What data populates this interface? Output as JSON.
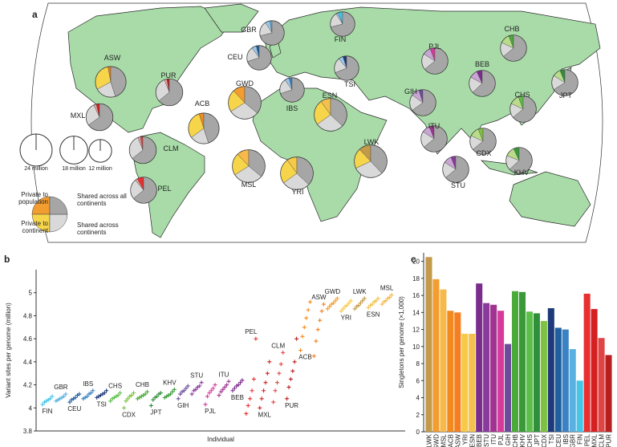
{
  "chart_data": [
    {
      "type": "pie-map",
      "panel": "a",
      "shared_colors": [
        "#d9d9d9",
        "#a6a6a6"
      ],
      "pies": [
        {
          "name": "ASW",
          "color": "#f57f20",
          "continent_color": "#f7d54a",
          "total": 22,
          "values": [
            3,
            30,
            22,
            45
          ]
        },
        {
          "name": "PUR",
          "color": "#b82020",
          "continent_color": "#f0a0a0",
          "total": 17,
          "values": [
            3,
            3,
            30,
            64
          ]
        },
        {
          "name": "MXL",
          "color": "#d42020",
          "continent_color": "#f0a0a0",
          "total": 17,
          "values": [
            4,
            3,
            28,
            65
          ]
        },
        {
          "name": "ACB",
          "color": "#f38a1f",
          "continent_color": "#f7d54a",
          "total": 22,
          "values": [
            5,
            30,
            20,
            45
          ]
        },
        {
          "name": "CLM",
          "color": "#e04545",
          "continent_color": "#f0a0a0",
          "total": 17,
          "values": [
            3,
            3,
            30,
            64
          ]
        },
        {
          "name": "PEL",
          "color": "#e83030",
          "continent_color": "#f0a0a0",
          "total": 16,
          "values": [
            8,
            3,
            25,
            64
          ]
        },
        {
          "name": "GBR",
          "color": "#5ab0e0",
          "continent_color": "#9ec6e8",
          "total": 14,
          "values": [
            3,
            6,
            20,
            71
          ]
        },
        {
          "name": "CEU",
          "color": "#1f5fa0",
          "continent_color": "#9ec6e8",
          "total": 14,
          "values": [
            4,
            6,
            20,
            70
          ]
        },
        {
          "name": "FIN",
          "color": "#45c5e8",
          "continent_color": "#9ec6e8",
          "total": 14,
          "values": [
            6,
            3,
            20,
            71
          ]
        },
        {
          "name": "IBS",
          "color": "#3a82c4",
          "continent_color": "#9ec6e8",
          "total": 14,
          "values": [
            4,
            6,
            20,
            70
          ]
        },
        {
          "name": "TSI",
          "color": "#1f3a7a",
          "continent_color": "#9ec6e8",
          "total": 14,
          "values": [
            5,
            6,
            20,
            69
          ]
        },
        {
          "name": "GWD",
          "color": "#f39c2f",
          "continent_color": "#f7d54a",
          "total": 25,
          "values": [
            12,
            22,
            30,
            36
          ]
        },
        {
          "name": "ESN",
          "color": "#f2c14e",
          "continent_color": "#f7d54a",
          "total": 25,
          "values": [
            10,
            25,
            28,
            37
          ]
        },
        {
          "name": "MSL",
          "color": "#f6b94a",
          "continent_color": "#f7d54a",
          "total": 25,
          "values": [
            12,
            22,
            30,
            36
          ]
        },
        {
          "name": "YRI",
          "color": "#f7c948",
          "continent_color": "#f7d54a",
          "total": 25,
          "values": [
            10,
            25,
            28,
            37
          ]
        },
        {
          "name": "LWK",
          "color": "#c29a4a",
          "continent_color": "#f7d54a",
          "total": 25,
          "values": [
            12,
            20,
            30,
            38
          ]
        },
        {
          "name": "PJL",
          "color": "#d63a9a",
          "continent_color": "#c9a4d4",
          "total": 16,
          "values": [
            6,
            10,
            20,
            64
          ]
        },
        {
          "name": "CHB",
          "color": "#4aab3a",
          "continent_color": "#b8dc8a",
          "total": 16,
          "values": [
            6,
            12,
            18,
            64
          ]
        },
        {
          "name": "BEB",
          "color": "#7b2d8e",
          "continent_color": "#c9a4d4",
          "total": 16,
          "values": [
            7,
            10,
            20,
            63
          ]
        },
        {
          "name": "GIH",
          "color": "#6b4c9a",
          "continent_color": "#c9a4d4",
          "total": 16,
          "values": [
            5,
            10,
            20,
            65
          ]
        },
        {
          "name": "ITU",
          "color": "#a0338f",
          "continent_color": "#c9a4d4",
          "total": 16,
          "values": [
            6,
            10,
            20,
            64
          ]
        },
        {
          "name": "CDX",
          "color": "#7fc241",
          "continent_color": "#b8dc8a",
          "total": 16,
          "values": [
            6,
            12,
            18,
            64
          ]
        },
        {
          "name": "STU",
          "color": "#8a3a9a",
          "continent_color": "#c9a4d4",
          "total": 16,
          "values": [
            6,
            10,
            20,
            64
          ]
        },
        {
          "name": "KHV",
          "color": "#3a9a3a",
          "continent_color": "#b8dc8a",
          "total": 16,
          "values": [
            7,
            12,
            18,
            63
          ]
        },
        {
          "name": "CHS",
          "color": "#5cbf4a",
          "continent_color": "#b8dc8a",
          "total": 16,
          "values": [
            6,
            12,
            18,
            64
          ]
        },
        {
          "name": "JPT",
          "color": "#2f8f3a",
          "continent_color": "#b8dc8a",
          "total": 16,
          "values": [
            6,
            10,
            18,
            66
          ]
        }
      ],
      "size_legend": [
        {
          "value": 24,
          "label": "24 million"
        },
        {
          "value": 18,
          "label": "18 million"
        },
        {
          "value": 12,
          "label": "12 million"
        }
      ],
      "legend_labels": [
        "Private to population",
        "Private to continent",
        "Shared across continents",
        "Shared across all continents"
      ],
      "legend_colors": [
        "#f39c2f",
        "#f7d54a",
        "#d9d9d9",
        "#a6a6a6"
      ]
    },
    {
      "type": "scatter",
      "panel": "b",
      "xlabel": "Individual",
      "ylabel": "Variant sites per genome (million)",
      "ylim": [
        3.8,
        5.2
      ],
      "yticks": [
        3.8,
        4,
        4.2,
        4.4,
        4.6,
        4.8,
        5
      ],
      "series": [
        {
          "name": "FIN",
          "color": "#45c5e8",
          "values": [
            4.03,
            4.05,
            4.06,
            4.07,
            4.08,
            4.1
          ]
        },
        {
          "name": "GBR",
          "color": "#5ab0e0",
          "values": [
            4.06,
            4.07,
            4.08,
            4.09,
            4.1,
            4.12
          ]
        },
        {
          "name": "CEU",
          "color": "#1f5fa0",
          "values": [
            4.05,
            4.07,
            4.08,
            4.09,
            4.11,
            4.12
          ]
        },
        {
          "name": "IBS",
          "color": "#3a82c4",
          "values": [
            4.08,
            4.09,
            4.1,
            4.12,
            4.13,
            4.15
          ]
        },
        {
          "name": "TSI",
          "color": "#1f3a7a",
          "values": [
            4.09,
            4.1,
            4.11,
            4.12,
            4.13,
            4.15
          ]
        },
        {
          "name": "CHS",
          "color": "#5cbf4a",
          "values": [
            4.06,
            4.08,
            4.09,
            4.1,
            4.11,
            4.13
          ]
        },
        {
          "name": "CDX",
          "color": "#7fc241",
          "values": [
            4.0,
            4.06,
            4.08,
            4.1,
            4.11,
            4.13
          ]
        },
        {
          "name": "CHB",
          "color": "#4aab3a",
          "values": [
            4.08,
            4.09,
            4.1,
            4.11,
            4.12,
            4.14
          ]
        },
        {
          "name": "JPT",
          "color": "#2f8f3a",
          "values": [
            4.02,
            4.07,
            4.09,
            4.1,
            4.12,
            4.13
          ]
        },
        {
          "name": "KHV",
          "color": "#3a9a3a",
          "values": [
            4.09,
            4.1,
            4.11,
            4.12,
            4.14,
            4.16
          ]
        },
        {
          "name": "GIH",
          "color": "#6b4c9a",
          "values": [
            4.08,
            4.12,
            4.14,
            4.15,
            4.17,
            4.19
          ]
        },
        {
          "name": "STU",
          "color": "#8a3a9a",
          "values": [
            4.12,
            4.15,
            4.16,
            4.18,
            4.19,
            4.22
          ]
        },
        {
          "name": "PJL",
          "color": "#d63a9a",
          "values": [
            4.03,
            4.1,
            4.13,
            4.15,
            4.17,
            4.2
          ]
        },
        {
          "name": "ITU",
          "color": "#a0338f",
          "values": [
            4.11,
            4.14,
            4.16,
            4.18,
            4.2,
            4.23
          ]
        },
        {
          "name": "BEB",
          "color": "#7b2d8e",
          "values": [
            4.15,
            4.17,
            4.19,
            4.2,
            4.22,
            4.24
          ]
        },
        {
          "name": "PEL",
          "color": "#e83030",
          "values": [
            3.95,
            4.02,
            4.08,
            4.15,
            4.25,
            4.6
          ]
        },
        {
          "name": "MXL",
          "color": "#d42020",
          "values": [
            4.0,
            4.08,
            4.15,
            4.22,
            4.3,
            4.4
          ]
        },
        {
          "name": "CLM",
          "color": "#e04545",
          "values": [
            4.05,
            4.15,
            4.22,
            4.3,
            4.38,
            4.48
          ]
        },
        {
          "name": "PUR",
          "color": "#b82020",
          "values": [
            4.08,
            4.18,
            4.25,
            4.32,
            4.4,
            4.6
          ]
        },
        {
          "name": "ACB",
          "color": "#f38a1f",
          "values": [
            4.5,
            4.62,
            4.7,
            4.78,
            4.85,
            4.92
          ]
        },
        {
          "name": "ASW",
          "color": "#f57f20",
          "values": [
            4.45,
            4.58,
            4.68,
            4.76,
            4.84,
            4.9
          ]
        },
        {
          "name": "GWD",
          "color": "#f39c2f",
          "values": [
            4.86,
            4.88,
            4.9,
            4.91,
            4.93,
            4.95
          ]
        },
        {
          "name": "YRI",
          "color": "#f7c948",
          "values": [
            4.84,
            4.86,
            4.88,
            4.89,
            4.91,
            4.93
          ]
        },
        {
          "name": "LWK",
          "color": "#c29a4a",
          "values": [
            4.86,
            4.88,
            4.89,
            4.91,
            4.93,
            4.95
          ]
        },
        {
          "name": "ESN",
          "color": "#f2c14e",
          "values": [
            4.87,
            4.89,
            4.9,
            4.92,
            4.93,
            4.95
          ]
        },
        {
          "name": "MSL",
          "color": "#f6b94a",
          "values": [
            4.9,
            4.92,
            4.93,
            4.95,
            4.96,
            4.98
          ]
        }
      ]
    },
    {
      "type": "bar",
      "panel": "c",
      "ylabel": "Singletons per genome (×1,000)",
      "ylim": [
        0,
        21
      ],
      "yticks": [
        0,
        2,
        4,
        6,
        8,
        10,
        12,
        14,
        16,
        18,
        20
      ],
      "categories": [
        "LWK",
        "GWD",
        "MSL",
        "ACB",
        "ASW",
        "YRI",
        "ESN",
        "BEB",
        "STU",
        "ITU",
        "PJL",
        "GIH",
        "CHB",
        "KHV",
        "CHS",
        "JPT",
        "CDX",
        "TSI",
        "CEU",
        "IBS",
        "GBR",
        "FIN",
        "PEL",
        "MXL",
        "CLM",
        "PUR"
      ],
      "values": [
        20.5,
        17.9,
        16.7,
        14.2,
        14.0,
        11.5,
        11.5,
        17.4,
        15.1,
        14.9,
        14.2,
        10.3,
        16.5,
        16.4,
        14.1,
        13.9,
        13.0,
        14.5,
        12.2,
        12.0,
        9.7,
        6.0,
        16.2,
        14.4,
        11.0,
        9.0
      ],
      "colors": [
        "#c29a4a",
        "#f39c2f",
        "#f6b94a",
        "#f38a1f",
        "#f57f20",
        "#f7c948",
        "#f2c14e",
        "#7b2d8e",
        "#8a3a9a",
        "#a0338f",
        "#d63a9a",
        "#6b4c9a",
        "#4aab3a",
        "#3a9a3a",
        "#5cbf4a",
        "#2f8f3a",
        "#7fc241",
        "#1f3a7a",
        "#1f5fa0",
        "#3a82c4",
        "#5ab0e0",
        "#45c5e8",
        "#e83030",
        "#d42020",
        "#e04545",
        "#b82020"
      ]
    }
  ]
}
